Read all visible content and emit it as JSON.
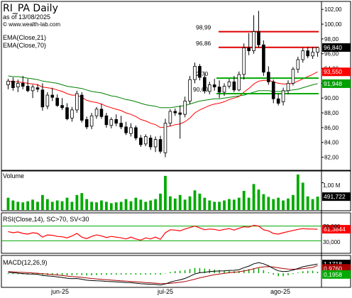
{
  "header": {
    "title": "RI_PA Daily",
    "date_label": "as of 13/08/2025",
    "source": "© www.wealth-lab.com",
    "ema21_label": "EMA(Close,21)",
    "ema70_label": "EMA(Close,70)"
  },
  "price_axis": [
    "102,00",
    "100,00",
    "98,00",
    "96,00",
    "94,00",
    "92,00",
    "90,00",
    "88,00",
    "86,00",
    "84,00",
    "82,00"
  ],
  "price_ticks": [
    102,
    100,
    98,
    96,
    94,
    92,
    90,
    88,
    86,
    84,
    82
  ],
  "level_labels": [
    "98,99",
    "96,86",
    "92,70",
    "90,60"
  ],
  "badges": {
    "price": "96,840",
    "ema21": "93,550",
    "ema70": "91,948",
    "volume": "491,722",
    "rsi": "61,3844",
    "macd": "1,1718",
    "macd_signal": "0,9760",
    "macd_hist": "0,1958"
  },
  "volume": {
    "title": "Volume",
    "axis_label": "1,00 M"
  },
  "rsi": {
    "title": "RSI(Close,14), SC>70, SV<30",
    "axis": [
      "70,000",
      "30,000"
    ]
  },
  "macd": {
    "title": "MACD(12,26,9)"
  },
  "x_axis": [
    "jun-25",
    "jul-25",
    "ago-25"
  ],
  "colors": {
    "up": "#00aa00",
    "down": "#000000",
    "ema21": "#ff0000",
    "ema70": "#008000",
    "level_red": "#e00000",
    "level_green": "#00aa00",
    "price_badge": "#000000",
    "ema21_badge": "#ff0000",
    "ema70_badge": "#00a000",
    "macd_line": "#000000",
    "signal_line": "#aa0000",
    "hist": "#00aa00",
    "rsi_line": "#ff0000"
  },
  "chart_data": {
    "type": "candlestick",
    "title": "RI_PA Daily",
    "y_range": [
      81,
      102.5
    ],
    "levels": [
      {
        "value": 98.99,
        "color": "red"
      },
      {
        "value": 96.86,
        "color": "red"
      },
      {
        "value": 92.7,
        "color": "green"
      },
      {
        "value": 90.6,
        "color": "green"
      }
    ],
    "candles": [
      {
        "o": 91.8,
        "h": 92.6,
        "l": 91.2,
        "c": 92.3
      },
      {
        "o": 92.3,
        "h": 92.8,
        "l": 91.0,
        "c": 91.4
      },
      {
        "o": 91.5,
        "h": 92.5,
        "l": 90.8,
        "c": 92.0
      },
      {
        "o": 92.0,
        "h": 93.0,
        "l": 91.2,
        "c": 91.6
      },
      {
        "o": 91.6,
        "h": 92.6,
        "l": 90.8,
        "c": 91.0
      },
      {
        "o": 91.0,
        "h": 91.8,
        "l": 90.0,
        "c": 91.5
      },
      {
        "o": 91.4,
        "h": 91.9,
        "l": 90.8,
        "c": 91.2
      },
      {
        "o": 91.1,
        "h": 92.0,
        "l": 88.3,
        "c": 88.8
      },
      {
        "o": 88.9,
        "h": 90.8,
        "l": 88.5,
        "c": 90.4
      },
      {
        "o": 90.4,
        "h": 91.4,
        "l": 89.6,
        "c": 90.1
      },
      {
        "o": 90.0,
        "h": 90.5,
        "l": 88.8,
        "c": 89.0
      },
      {
        "o": 89.0,
        "h": 90.0,
        "l": 88.4,
        "c": 88.7
      },
      {
        "o": 88.7,
        "h": 89.3,
        "l": 87.0,
        "c": 87.2
      },
      {
        "o": 87.3,
        "h": 88.8,
        "l": 86.8,
        "c": 88.4
      },
      {
        "o": 88.4,
        "h": 91.0,
        "l": 88.0,
        "c": 90.6
      },
      {
        "o": 90.4,
        "h": 90.8,
        "l": 86.7,
        "c": 87.0
      },
      {
        "o": 87.1,
        "h": 87.5,
        "l": 85.8,
        "c": 86.1
      },
      {
        "o": 86.2,
        "h": 88.0,
        "l": 85.8,
        "c": 87.6
      },
      {
        "o": 87.6,
        "h": 88.8,
        "l": 87.2,
        "c": 88.5
      },
      {
        "o": 88.5,
        "h": 89.2,
        "l": 87.2,
        "c": 87.5
      },
      {
        "o": 87.6,
        "h": 88.0,
        "l": 86.0,
        "c": 86.4
      },
      {
        "o": 86.3,
        "h": 87.4,
        "l": 85.9,
        "c": 87.1
      },
      {
        "o": 87.1,
        "h": 87.8,
        "l": 86.2,
        "c": 86.6
      },
      {
        "o": 86.6,
        "h": 87.6,
        "l": 85.8,
        "c": 86.1
      },
      {
        "o": 86.1,
        "h": 86.8,
        "l": 85.0,
        "c": 85.3
      },
      {
        "o": 85.2,
        "h": 86.6,
        "l": 84.8,
        "c": 86.0
      },
      {
        "o": 86.0,
        "h": 86.3,
        "l": 84.3,
        "c": 84.6
      },
      {
        "o": 84.6,
        "h": 85.0,
        "l": 83.4,
        "c": 83.7
      },
      {
        "o": 83.8,
        "h": 85.1,
        "l": 83.5,
        "c": 84.8
      },
      {
        "o": 84.6,
        "h": 85.0,
        "l": 83.0,
        "c": 83.4
      },
      {
        "o": 83.4,
        "h": 84.8,
        "l": 82.7,
        "c": 84.4
      },
      {
        "o": 84.4,
        "h": 84.9,
        "l": 82.5,
        "c": 82.8
      },
      {
        "o": 82.6,
        "h": 87.2,
        "l": 82.0,
        "c": 86.6
      },
      {
        "o": 86.6,
        "h": 88.5,
        "l": 86.2,
        "c": 88.2
      },
      {
        "o": 88.2,
        "h": 88.6,
        "l": 87.6,
        "c": 88.0
      },
      {
        "o": 88.0,
        "h": 89.0,
        "l": 84.5,
        "c": 87.8
      },
      {
        "o": 87.8,
        "h": 90.2,
        "l": 87.4,
        "c": 89.6
      },
      {
        "o": 89.6,
        "h": 93.0,
        "l": 89.2,
        "c": 92.5
      },
      {
        "o": 92.5,
        "h": 94.8,
        "l": 92.0,
        "c": 94.3
      },
      {
        "o": 94.3,
        "h": 94.6,
        "l": 92.4,
        "c": 92.8
      },
      {
        "o": 92.8,
        "h": 93.4,
        "l": 90.6,
        "c": 91.0
      },
      {
        "o": 90.9,
        "h": 92.2,
        "l": 90.5,
        "c": 91.8
      },
      {
        "o": 91.8,
        "h": 92.6,
        "l": 91.0,
        "c": 91.5
      },
      {
        "o": 91.5,
        "h": 92.4,
        "l": 90.0,
        "c": 90.8
      },
      {
        "o": 90.8,
        "h": 92.0,
        "l": 90.3,
        "c": 91.6
      },
      {
        "o": 91.6,
        "h": 92.6,
        "l": 91.3,
        "c": 92.2
      },
      {
        "o": 92.2,
        "h": 93.0,
        "l": 90.8,
        "c": 91.1
      },
      {
        "o": 91.1,
        "h": 93.6,
        "l": 90.9,
        "c": 93.2
      },
      {
        "o": 93.2,
        "h": 97.4,
        "l": 92.5,
        "c": 96.8
      },
      {
        "o": 96.8,
        "h": 98.8,
        "l": 95.8,
        "c": 96.4
      },
      {
        "o": 96.4,
        "h": 101.2,
        "l": 96.0,
        "c": 99.0
      },
      {
        "o": 99.0,
        "h": 101.8,
        "l": 96.8,
        "c": 97.2
      },
      {
        "o": 97.2,
        "h": 97.8,
        "l": 93.0,
        "c": 93.5
      },
      {
        "o": 93.5,
        "h": 94.3,
        "l": 91.8,
        "c": 92.2
      },
      {
        "o": 92.2,
        "h": 92.5,
        "l": 89.3,
        "c": 89.9
      },
      {
        "o": 89.9,
        "h": 90.6,
        "l": 89.0,
        "c": 89.3
      },
      {
        "o": 89.5,
        "h": 91.4,
        "l": 89.0,
        "c": 91.0
      },
      {
        "o": 91.0,
        "h": 92.4,
        "l": 90.5,
        "c": 92.0
      },
      {
        "o": 92.0,
        "h": 94.2,
        "l": 91.7,
        "c": 93.9
      },
      {
        "o": 93.9,
        "h": 95.6,
        "l": 93.4,
        "c": 95.2
      },
      {
        "o": 95.2,
        "h": 96.8,
        "l": 94.8,
        "c": 96.4
      },
      {
        "o": 96.4,
        "h": 96.9,
        "l": 95.4,
        "c": 95.7
      },
      {
        "o": 95.7,
        "h": 96.9,
        "l": 95.3,
        "c": 96.2
      },
      {
        "o": 96.2,
        "h": 96.9,
        "l": 95.6,
        "c": 96.84
      }
    ],
    "ema21": [
      92.3,
      92.2,
      92.2,
      92.1,
      92.0,
      91.9,
      91.8,
      91.5,
      91.4,
      91.3,
      91.1,
      90.9,
      90.6,
      90.4,
      90.4,
      90.1,
      89.7,
      89.5,
      89.4,
      89.2,
      88.9,
      88.7,
      88.5,
      88.3,
      88.0,
      87.8,
      87.5,
      87.1,
      86.9,
      86.6,
      86.4,
      86.0,
      86.1,
      86.2,
      86.4,
      86.5,
      86.8,
      87.3,
      88.0,
      88.4,
      88.7,
      89.0,
      89.2,
      89.3,
      89.5,
      89.8,
      90.0,
      90.2,
      90.8,
      91.3,
      91.9,
      92.3,
      92.4,
      92.4,
      92.2,
      92.0,
      91.9,
      91.9,
      92.0,
      92.3,
      92.6,
      92.9,
      93.2,
      93.55
    ],
    "ema70": [
      93.0,
      92.9,
      92.9,
      92.8,
      92.7,
      92.6,
      92.5,
      92.3,
      92.2,
      92.1,
      92.0,
      91.8,
      91.6,
      91.5,
      91.4,
      91.3,
      91.1,
      90.9,
      90.8,
      90.7,
      90.5,
      90.3,
      90.2,
      90.0,
      89.8,
      89.7,
      89.5,
      89.3,
      89.1,
      89.0,
      88.9,
      88.7,
      88.7,
      88.7,
      88.8,
      88.9,
      89.0,
      89.2,
      89.4,
      89.6,
      89.7,
      89.8,
      89.9,
      89.9,
      90.0,
      90.1,
      90.2,
      90.3,
      90.4,
      90.6,
      90.8,
      91.0,
      91.0,
      91.0,
      90.9,
      90.9,
      90.9,
      91.0,
      91.1,
      91.2,
      91.4,
      91.6,
      91.8,
      91.948
    ],
    "volume": [
      0.45,
      0.35,
      0.3,
      0.28,
      0.32,
      0.38,
      0.3,
      0.55,
      0.4,
      0.3,
      0.35,
      0.32,
      0.45,
      0.3,
      0.55,
      0.62,
      0.4,
      0.3,
      0.28,
      0.35,
      0.3,
      0.25,
      0.28,
      0.3,
      0.4,
      0.32,
      0.45,
      0.38,
      0.3,
      0.35,
      0.4,
      0.6,
      1.25,
      0.5,
      0.42,
      0.55,
      0.38,
      0.5,
      0.72,
      0.6,
      0.45,
      0.35,
      0.3,
      0.3,
      0.35,
      0.4,
      0.38,
      0.45,
      0.7,
      0.45,
      0.95,
      0.75,
      0.58,
      0.48,
      0.4,
      0.45,
      0.35,
      0.42,
      0.55,
      1.3,
      1.0,
      0.5,
      0.4,
      0.49
    ],
    "rsi": [
      55,
      52,
      54,
      50,
      48,
      52,
      50,
      40,
      46,
      45,
      42,
      41,
      38,
      43,
      50,
      40,
      36,
      42,
      46,
      43,
      39,
      42,
      40,
      38,
      35,
      40,
      35,
      32,
      38,
      35,
      40,
      34,
      52,
      60,
      59,
      57,
      62,
      66,
      70,
      65,
      60,
      62,
      61,
      58,
      61,
      63,
      59,
      64,
      68,
      67,
      72,
      70,
      60,
      57,
      50,
      48,
      52,
      55,
      58,
      61,
      63,
      62,
      62,
      61.38
    ],
    "macd": [
      0.1,
      0.05,
      0.0,
      -0.05,
      -0.1,
      -0.12,
      -0.15,
      -0.3,
      -0.35,
      -0.4,
      -0.48,
      -0.55,
      -0.65,
      -0.7,
      -0.68,
      -0.78,
      -0.9,
      -0.95,
      -0.98,
      -1.0,
      -1.05,
      -1.08,
      -1.12,
      -1.15,
      -1.2,
      -1.22,
      -1.28,
      -1.35,
      -1.38,
      -1.42,
      -1.45,
      -1.52,
      -1.38,
      -1.15,
      -0.98,
      -0.85,
      -0.68,
      -0.4,
      -0.1,
      0.05,
      0.12,
      0.2,
      0.25,
      0.28,
      0.3,
      0.35,
      0.36,
      0.45,
      0.7,
      0.9,
      1.2,
      1.35,
      1.2,
      0.95,
      0.6,
      0.3,
      0.2,
      0.25,
      0.4,
      0.6,
      0.82,
      0.95,
      1.05,
      1.17
    ],
    "macd_signal": [
      0.2,
      0.17,
      0.13,
      0.1,
      0.06,
      0.02,
      -0.01,
      -0.07,
      -0.13,
      -0.18,
      -0.24,
      -0.3,
      -0.37,
      -0.44,
      -0.48,
      -0.54,
      -0.61,
      -0.68,
      -0.74,
      -0.79,
      -0.84,
      -0.89,
      -0.93,
      -0.98,
      -1.02,
      -1.06,
      -1.1,
      -1.15,
      -1.2,
      -1.24,
      -1.28,
      -1.33,
      -1.34,
      -1.3,
      -1.24,
      -1.16,
      -1.07,
      -0.93,
      -0.77,
      -0.6,
      -0.46,
      -0.33,
      -0.21,
      -0.11,
      -0.03,
      0.05,
      0.11,
      0.18,
      0.28,
      0.4,
      0.56,
      0.72,
      0.81,
      0.84,
      0.79,
      0.69,
      0.59,
      0.52,
      0.5,
      0.52,
      0.58,
      0.66,
      0.74,
      0.98
    ]
  }
}
